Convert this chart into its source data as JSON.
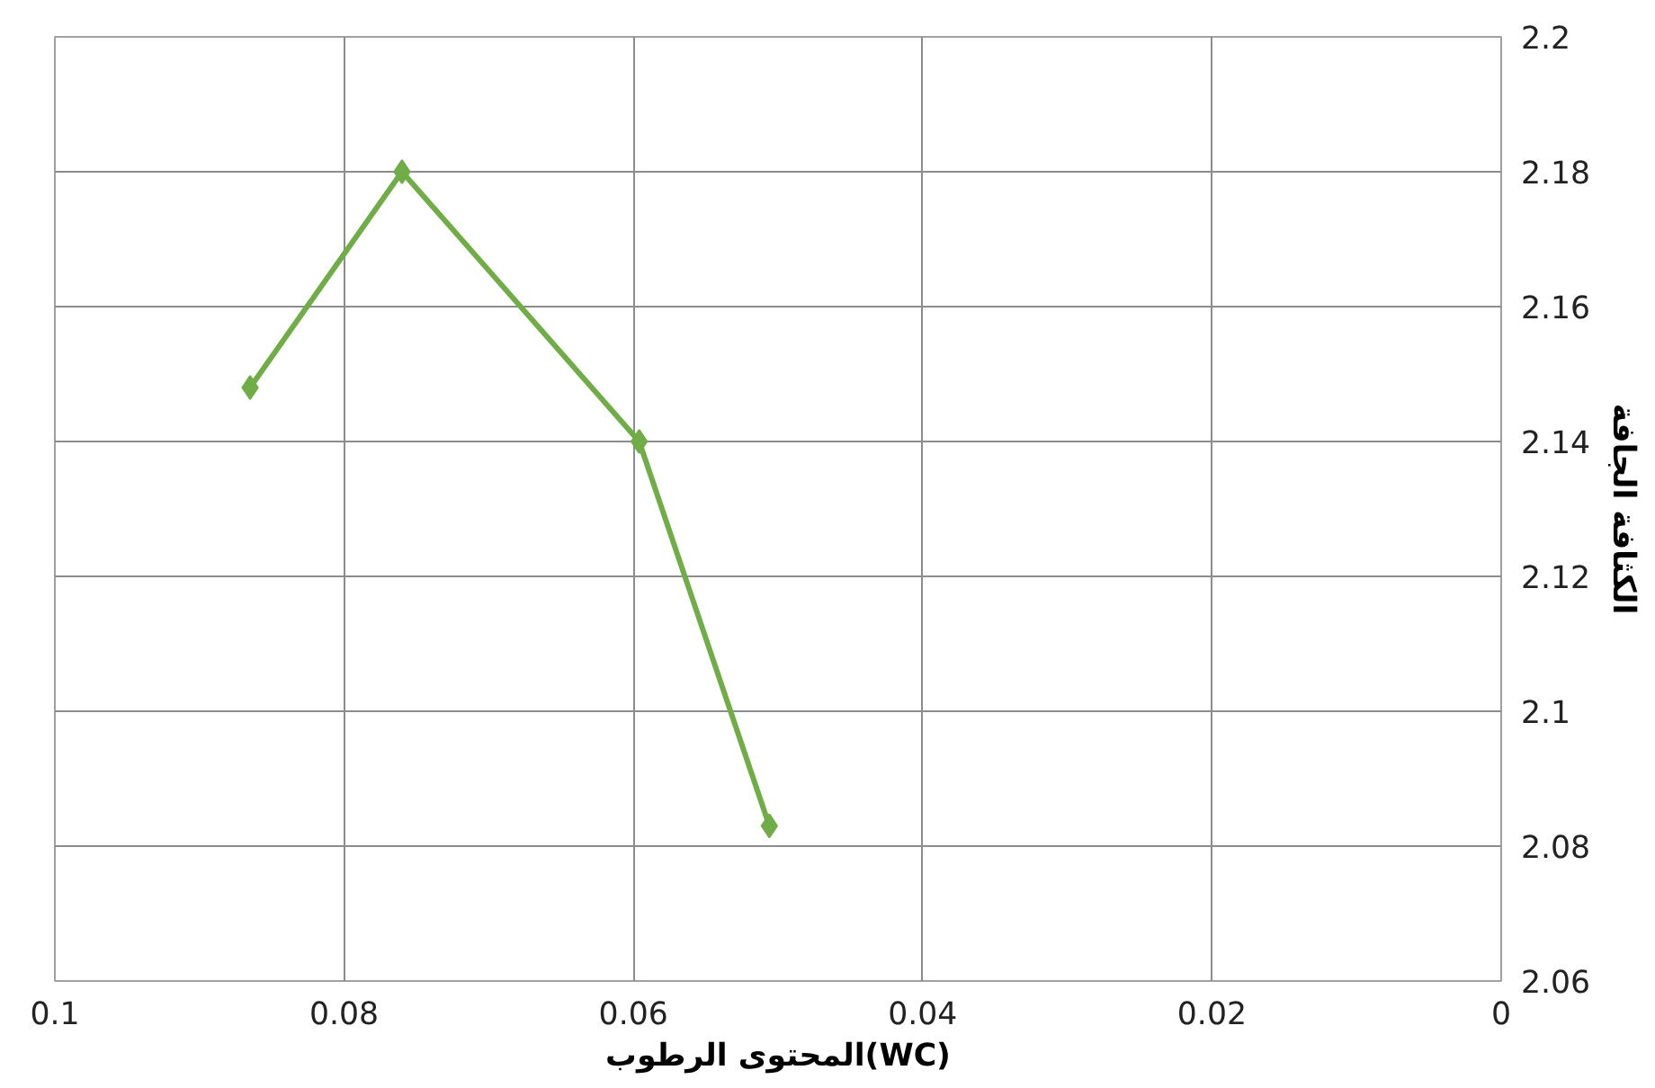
{
  "chart_data": {
    "type": "line",
    "xlabel": "المحتوى الرطوب(WC)",
    "ylabel": "الكثافة الجافة",
    "x": [
      0.0865,
      0.076,
      0.0596,
      0.0506
    ],
    "series": [
      {
        "color": "#70ad47",
        "values": [
          2.148,
          2.18,
          2.14,
          2.083
        ]
      }
    ],
    "xlim": [
      0.1,
      0
    ],
    "xticks": [
      0.1,
      0.08,
      0.06,
      0.04,
      0.02,
      0
    ],
    "ylim": [
      2.06,
      2.2
    ],
    "yticks": [
      2.06,
      2.08,
      2.1,
      2.12,
      2.14,
      2.16,
      2.18,
      2.2
    ],
    "grid": true,
    "marker": "diamond",
    "line_style": "solid"
  }
}
